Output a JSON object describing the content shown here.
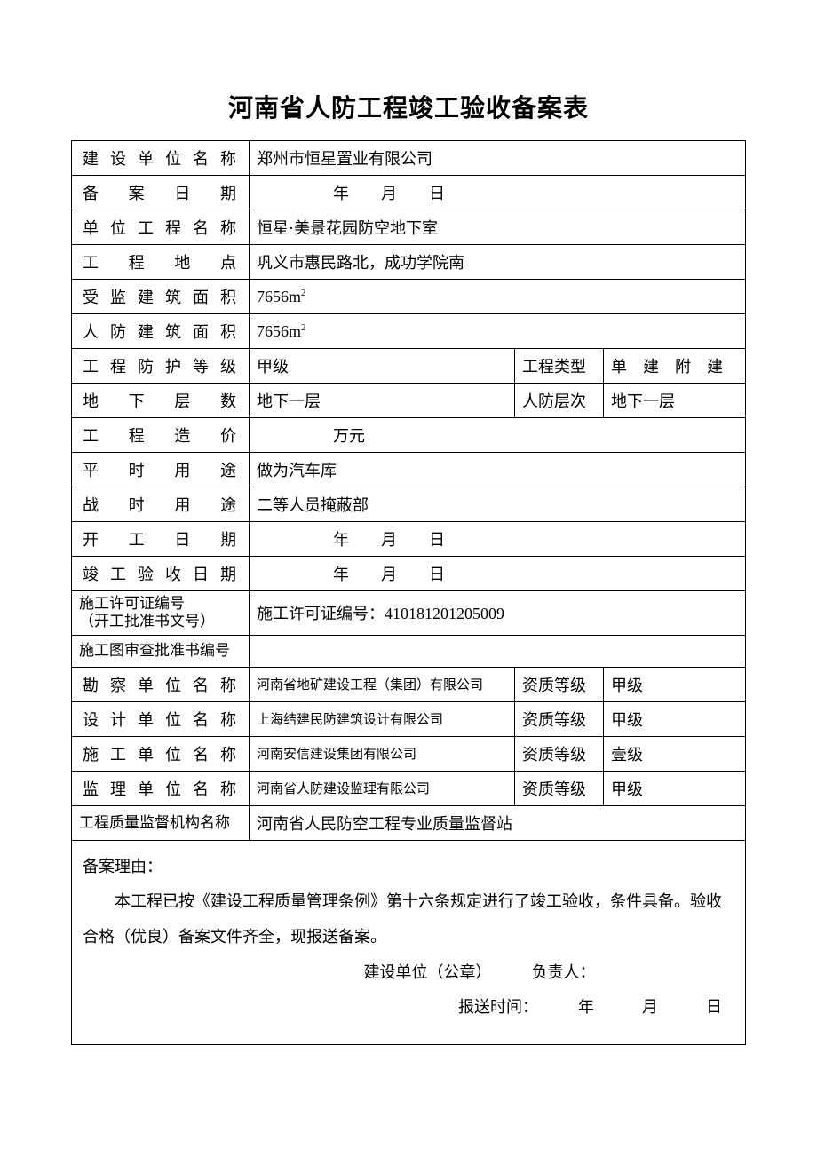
{
  "title": "河南省人防工程竣工验收备案表",
  "rows": {
    "construction_unit": {
      "label": "建设单位名称",
      "value": "郑州市恒星置业有限公司"
    },
    "filing_date": {
      "label": "备案日期",
      "value": "　　　年　　月　　日"
    },
    "unit_project": {
      "label": "单位工程名称",
      "value": "恒星·美景花园防空地下室"
    },
    "location": {
      "label": "工程地点",
      "value": "巩义市惠民路北，成功学院南"
    },
    "supervised_area": {
      "label": "受监建筑面积",
      "value": "7656m"
    },
    "defense_area": {
      "label": "人防建筑面积",
      "value": "7656m"
    },
    "protection_level": {
      "label": "工程防护等级",
      "value": "甲级",
      "label2": "工程类型",
      "value2": "单　建　附　建"
    },
    "underground_floors": {
      "label": "地下层数",
      "value": "地下一层",
      "label2": "人防层次",
      "value2": "地下一层"
    },
    "cost": {
      "label": "工程造价",
      "value": "　　　万元"
    },
    "peacetime_use": {
      "label": "平时用途",
      "value": "做为汽车库"
    },
    "wartime_use": {
      "label": "战时用途",
      "value": "二等人员掩蔽部"
    },
    "start_date": {
      "label": "开工日期",
      "value": "　　　年　　月　　日"
    },
    "completion_date": {
      "label": "竣工验收日期",
      "value": "　　　年　　月　　日"
    },
    "permit_no": {
      "label1": "施工许可证编号",
      "label2": "（开工批准书文号）",
      "value": "施工许可证编号：410181201205009"
    },
    "drawing_approval": {
      "label": "施工图审查批准书编号",
      "value": ""
    },
    "survey_unit": {
      "label": "勘察单位名称",
      "value": "河南省地矿建设工程（集团）有限公司",
      "qual_label": "资质等级",
      "qual_value": "甲级"
    },
    "design_unit": {
      "label": "设计单位名称",
      "value": "上海结建民防建筑设计有限公司",
      "qual_label": "资质等级",
      "qual_value": "甲级"
    },
    "construction_co": {
      "label": "施工单位名称",
      "value": "河南安信建设集团有限公司",
      "qual_label": "资质等级",
      "qual_value": "壹级"
    },
    "supervision_unit": {
      "label": "监理单位名称",
      "value": "河南省人防建设监理有限公司",
      "qual_label": "资质等级",
      "qual_value": "甲级"
    },
    "quality_org": {
      "label": "工程质量监督机构名称",
      "value": "河南省人民防空工程专业质量监督站"
    }
  },
  "reason": {
    "heading": "备案理由：",
    "body": "本工程已按《建设工程质量管理条例》第十六条规定进行了竣工验收，条件具备。验收合格（优良）备案文件齐全，现报送备案。",
    "sig1": "建设单位（公章）　　　负责人：",
    "sig2": "报送时间：　　　年　　　月　　　日"
  },
  "style": {
    "page_bg": "#ffffff",
    "border_color": "#000000",
    "text_color": "#000000",
    "title_fontsize": 28,
    "cell_fontsize": 18,
    "small_fontsize": 15
  }
}
